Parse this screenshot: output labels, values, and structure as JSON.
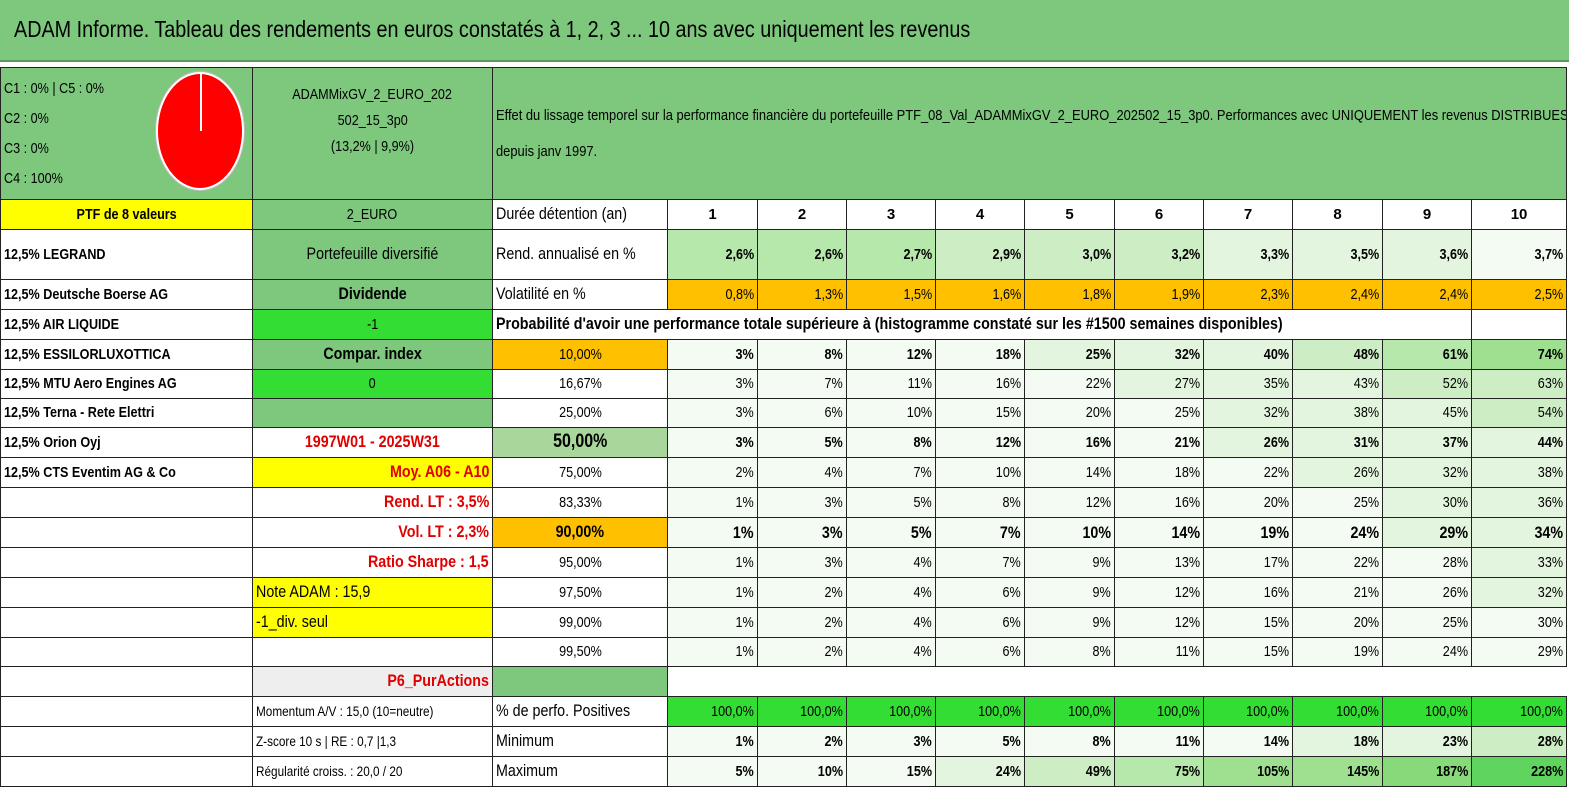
{
  "header": {
    "title": "ADAM Informe. Tableau des rendements en euros constatés à 1, 2, 3 ... 10 ans avec uniquement les revenus"
  },
  "allocation": {
    "legend": [
      "C1 : 0% | C5 : 0%",
      "C2 : 0%",
      "C3 : 0%",
      "C4 : 100%"
    ],
    "pie": {
      "C1": 0,
      "C2": 0,
      "C3": 0,
      "C4": 100,
      "C5": 0,
      "color": "#ff0000"
    }
  },
  "portfolio": {
    "name_line1": "ADAMMixGV_2_EURO_202",
    "name_line2": "502_15_3p0",
    "name_line3": "(13,2% | 9,9%)",
    "description": "Effet du lissage temporel sur la performance financière du portefeuille PTF_08_Val_ADAMMixGV_2_EURO_202502_15_3p0. Performances avec UNIQUEMENT les revenus DISTRIBUES depuis janv 1997.",
    "ptf_label": "PTF de 8 valeurs",
    "currency": "2_EURO"
  },
  "holdings": [
    "12,5% LEGRAND",
    "12,5% Deutsche Boerse AG",
    "12,5% AIR LIQUIDE",
    "12,5% ESSILORLUXOTTICA",
    "12,5% MTU Aero Engines AG",
    "12,5% Terna - Rete Elettri",
    "12,5% Orion Oyj",
    "12,5% CTS Eventim AG & Co"
  ],
  "side": {
    "diversified": "Portefeuille diversifié",
    "dividend": "Dividende",
    "dividend_value": "-1",
    "compar_index": "Compar. index",
    "compar_value": "0",
    "period": "1997W01 - 2025W31",
    "moy": "Moy. A06 - A10",
    "rend_lt": "Rend. LT : 3,5%",
    "vol_lt": "Vol. LT : 2,3%",
    "sharpe": "Ratio Sharpe : 1,5",
    "note": "Note ADAM : 15,9",
    "div_seul": "-1_div. seul",
    "p6": "P6_PurActions",
    "momentum": "Momentum A/V : 15,0 (10=neutre)",
    "zscore": "Z-score 10 s | RE : 0,7 |1,3",
    "regularite": "Régularité croiss. : 20,0 / 20"
  },
  "table": {
    "duration_label": "Durée détention (an)",
    "years": [
      "1",
      "2",
      "3",
      "4",
      "5",
      "6",
      "7",
      "8",
      "9",
      "10"
    ],
    "rend_label": "Rend. annualisé en %",
    "rend": [
      "2,6%",
      "2,6%",
      "2,7%",
      "2,9%",
      "3,0%",
      "3,2%",
      "3,3%",
      "3,5%",
      "3,6%",
      "3,7%"
    ],
    "vol_label": "Volatilité en %",
    "vol": [
      "0,8%",
      "1,3%",
      "1,5%",
      "1,6%",
      "1,8%",
      "1,9%",
      "2,3%",
      "2,4%",
      "2,4%",
      "2,5%"
    ],
    "prob_title": "Probabilité d'avoir une performance totale supérieure à (histogramme constaté sur les #1500 semaines disponibles)",
    "quantiles": [
      {
        "label": "10,00%",
        "values": [
          "3%",
          "8%",
          "12%",
          "18%",
          "25%",
          "32%",
          "40%",
          "48%",
          "61%",
          "74%"
        ]
      },
      {
        "label": "16,67%",
        "values": [
          "3%",
          "7%",
          "11%",
          "16%",
          "22%",
          "27%",
          "35%",
          "43%",
          "52%",
          "63%"
        ]
      },
      {
        "label": "25,00%",
        "values": [
          "3%",
          "6%",
          "10%",
          "15%",
          "20%",
          "25%",
          "32%",
          "38%",
          "45%",
          "54%"
        ]
      },
      {
        "label": "50,00%",
        "values": [
          "3%",
          "5%",
          "8%",
          "12%",
          "16%",
          "21%",
          "26%",
          "31%",
          "37%",
          "44%"
        ]
      },
      {
        "label": "75,00%",
        "values": [
          "2%",
          "4%",
          "7%",
          "10%",
          "14%",
          "18%",
          "22%",
          "26%",
          "32%",
          "38%"
        ]
      },
      {
        "label": "83,33%",
        "values": [
          "1%",
          "3%",
          "5%",
          "8%",
          "12%",
          "16%",
          "20%",
          "25%",
          "30%",
          "36%"
        ]
      },
      {
        "label": "90,00%",
        "values": [
          "1%",
          "3%",
          "5%",
          "7%",
          "10%",
          "14%",
          "19%",
          "24%",
          "29%",
          "34%"
        ]
      },
      {
        "label": "95,00%",
        "values": [
          "1%",
          "3%",
          "4%",
          "7%",
          "9%",
          "13%",
          "17%",
          "22%",
          "28%",
          "33%"
        ]
      },
      {
        "label": "97,50%",
        "values": [
          "1%",
          "2%",
          "4%",
          "6%",
          "9%",
          "12%",
          "16%",
          "21%",
          "26%",
          "32%"
        ]
      },
      {
        "label": "99,00%",
        "values": [
          "1%",
          "2%",
          "4%",
          "6%",
          "9%",
          "12%",
          "15%",
          "20%",
          "25%",
          "30%"
        ]
      },
      {
        "label": "99,50%",
        "values": [
          "1%",
          "2%",
          "4%",
          "6%",
          "8%",
          "11%",
          "15%",
          "19%",
          "24%",
          "29%"
        ]
      }
    ],
    "positive_label": "% de perfo. Positives",
    "positive": [
      "100,0%",
      "100,0%",
      "100,0%",
      "100,0%",
      "100,0%",
      "100,0%",
      "100,0%",
      "100,0%",
      "100,0%",
      "100,0%"
    ],
    "min_label": "Minimum",
    "min": [
      "1%",
      "2%",
      "3%",
      "5%",
      "8%",
      "11%",
      "14%",
      "18%",
      "23%",
      "28%"
    ],
    "max_label": "Maximum",
    "max": [
      "5%",
      "10%",
      "15%",
      "24%",
      "49%",
      "75%",
      "105%",
      "145%",
      "187%",
      "228%"
    ]
  },
  "colors": {
    "green": "#7ec87e",
    "bright_green": "#33dd33",
    "yellow": "#ffff00",
    "orange": "#ffc000",
    "red_text": "#e00000"
  }
}
